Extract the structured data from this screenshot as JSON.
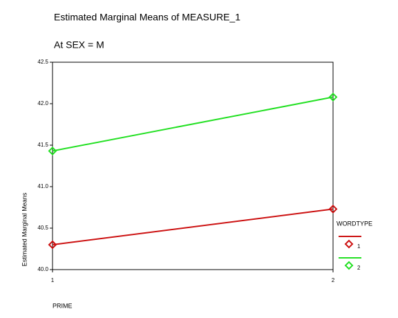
{
  "chart_data": {
    "type": "line",
    "title": "Estimated Marginal Means of MEASURE_1",
    "subtitle": "At SEX = M",
    "x_label": "PRIME",
    "y_label": "Estimated Marginal Means",
    "legend_title": "WORDTYPE",
    "x": [
      1,
      2
    ],
    "series": [
      {
        "name": "1",
        "color": "#cc1010",
        "values": [
          40.3,
          40.73
        ]
      },
      {
        "name": "2",
        "color": "#22e022",
        "values": [
          41.43,
          42.08
        ]
      }
    ],
    "xlim": [
      1,
      2
    ],
    "xticks": [
      1,
      2
    ],
    "ylim": [
      40.0,
      42.5
    ],
    "yticks": [
      {
        "value": 40,
        "label": "40.0"
      },
      40.5,
      {
        "value": 41,
        "label": "41.0"
      },
      41.5,
      {
        "value": 42,
        "label": "42.0"
      },
      42.5
    ]
  }
}
